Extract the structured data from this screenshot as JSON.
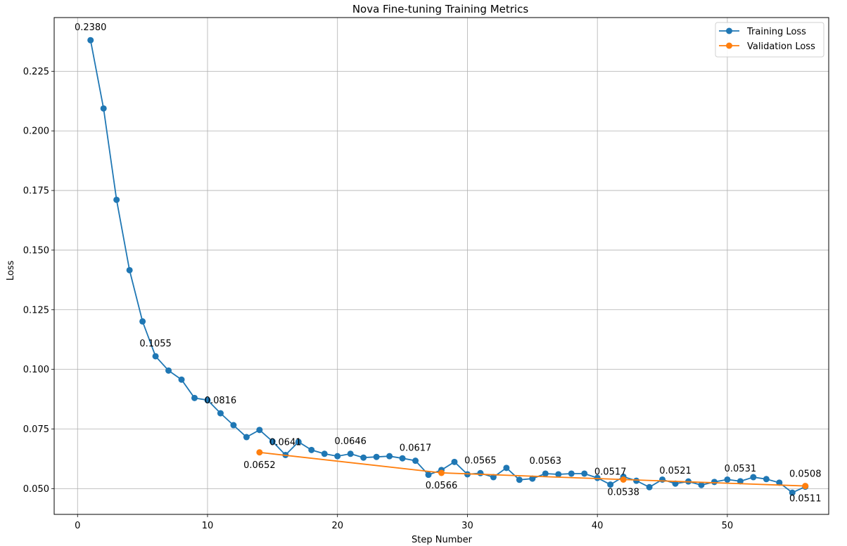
{
  "chart_data": {
    "type": "line",
    "title": "Nova Fine-tuning Training Metrics",
    "xlabel": "Step Number",
    "ylabel": "Loss",
    "xlim": [
      -1.8,
      57.8
    ],
    "ylim": [
      0.0392,
      0.2475
    ],
    "xticks": [
      0,
      10,
      20,
      30,
      40,
      50
    ],
    "yticks": [
      0.05,
      0.075,
      0.1,
      0.125,
      0.15,
      0.175,
      0.2,
      0.225
    ],
    "ytick_labels": [
      "0.050",
      "0.075",
      "0.100",
      "0.125",
      "0.150",
      "0.175",
      "0.200",
      "0.225"
    ],
    "grid": true,
    "legend_position": "upper right",
    "series": [
      {
        "name": "Training Loss",
        "color": "#1f77b4",
        "marker": "circle",
        "x": [
          1,
          2,
          3,
          4,
          5,
          6,
          7,
          8,
          9,
          10,
          11,
          12,
          13,
          14,
          15,
          16,
          17,
          18,
          19,
          20,
          21,
          22,
          23,
          24,
          25,
          26,
          27,
          28,
          29,
          30,
          31,
          32,
          33,
          34,
          35,
          36,
          37,
          38,
          39,
          40,
          41,
          42,
          43,
          44,
          45,
          46,
          47,
          48,
          49,
          50,
          51,
          52,
          53,
          54,
          55,
          56
        ],
        "values": [
          0.238,
          0.2094,
          0.1711,
          0.1416,
          0.1201,
          0.1055,
          0.0995,
          0.0957,
          0.088,
          0.0871,
          0.0816,
          0.0766,
          0.0716,
          0.0746,
          0.0698,
          0.0641,
          0.0696,
          0.0662,
          0.0646,
          0.0636,
          0.0646,
          0.063,
          0.0633,
          0.0636,
          0.0627,
          0.0617,
          0.0558,
          0.0578,
          0.0612,
          0.056,
          0.0565,
          0.0548,
          0.0587,
          0.0537,
          0.0542,
          0.0563,
          0.056,
          0.0563,
          0.0563,
          0.0545,
          0.0517,
          0.055,
          0.0533,
          0.0506,
          0.0538,
          0.0521,
          0.053,
          0.0515,
          0.0528,
          0.0538,
          0.0531,
          0.0548,
          0.054,
          0.0525,
          0.0483,
          0.0508
        ]
      },
      {
        "name": "Validation Loss",
        "color": "#ff7f0e",
        "marker": "circle",
        "x": [
          14,
          28,
          42,
          56
        ],
        "values": [
          0.0652,
          0.0566,
          0.0538,
          0.0511
        ]
      }
    ],
    "annotations": [
      {
        "series": "Training Loss",
        "x": 1,
        "text": "0.2380",
        "pos": "above"
      },
      {
        "series": "Training Loss",
        "x": 6,
        "text": "0.1055",
        "pos": "above"
      },
      {
        "series": "Training Loss",
        "x": 11,
        "text": "0.0816",
        "pos": "above"
      },
      {
        "series": "Training Loss",
        "x": 16,
        "text": "0.0641",
        "pos": "above"
      },
      {
        "series": "Training Loss",
        "x": 21,
        "text": "0.0646",
        "pos": "above"
      },
      {
        "series": "Training Loss",
        "x": 26,
        "text": "0.0617",
        "pos": "above"
      },
      {
        "series": "Training Loss",
        "x": 31,
        "text": "0.0565",
        "pos": "above"
      },
      {
        "series": "Training Loss",
        "x": 36,
        "text": "0.0563",
        "pos": "above"
      },
      {
        "series": "Training Loss",
        "x": 41,
        "text": "0.0517",
        "pos": "above"
      },
      {
        "series": "Training Loss",
        "x": 46,
        "text": "0.0521",
        "pos": "above"
      },
      {
        "series": "Training Loss",
        "x": 51,
        "text": "0.0531",
        "pos": "above"
      },
      {
        "series": "Training Loss",
        "x": 56,
        "text": "0.0508",
        "pos": "above"
      },
      {
        "series": "Validation Loss",
        "x": 14,
        "text": "0.0652",
        "pos": "below"
      },
      {
        "series": "Validation Loss",
        "x": 28,
        "text": "0.0566",
        "pos": "below"
      },
      {
        "series": "Validation Loss",
        "x": 42,
        "text": "0.0538",
        "pos": "below"
      },
      {
        "series": "Validation Loss",
        "x": 56,
        "text": "0.0511",
        "pos": "below"
      }
    ]
  }
}
